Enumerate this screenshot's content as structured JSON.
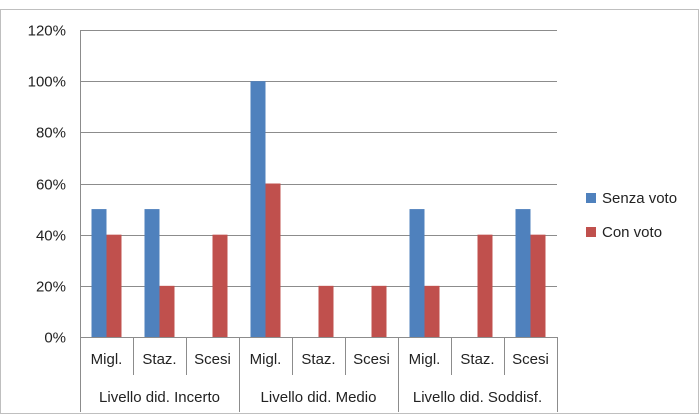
{
  "chart_data": {
    "type": "bar",
    "title": "",
    "xlabel": "",
    "ylabel": "",
    "ylim": [
      0,
      1.2
    ],
    "y_ticks": [
      "0%",
      "20%",
      "40%",
      "60%",
      "80%",
      "100%",
      "120%"
    ],
    "grid": true,
    "legend_position": "right",
    "groups": [
      {
        "label": "Livello did. Incerto",
        "categories": [
          "Migl.",
          "Staz.",
          "Scesi"
        ]
      },
      {
        "label": "Livello did. Medio",
        "categories": [
          "Migl.",
          "Staz.",
          "Scesi"
        ]
      },
      {
        "label": "Livello did. Soddisf.",
        "categories": [
          "Migl.",
          "Staz.",
          "Scesi"
        ]
      }
    ],
    "series": [
      {
        "name": "Senza voto",
        "color": "#4f81bd",
        "values": [
          0.5,
          0.5,
          0,
          1.0,
          0,
          0,
          0.5,
          0,
          0.5
        ]
      },
      {
        "name": "Con voto",
        "color": "#c0504d",
        "values": [
          0.4,
          0.2,
          0.4,
          0.6,
          0.2,
          0.2,
          0.2,
          0.4,
          0.4
        ]
      }
    ]
  }
}
